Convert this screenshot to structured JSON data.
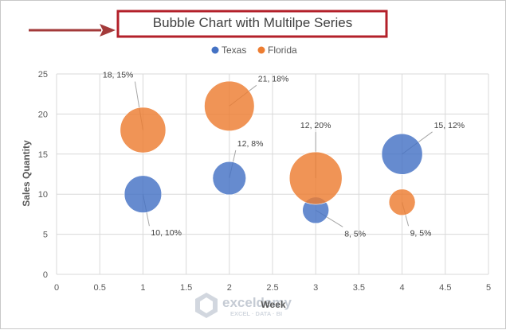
{
  "chart_data": {
    "type": "bubble",
    "title": "Bubble Chart with Multilpe Series",
    "xlabel": "Week",
    "ylabel": "Sales Quantity",
    "xlim": [
      0,
      5
    ],
    "ylim": [
      0,
      25
    ],
    "x_ticks": [
      "0",
      "0.5",
      "1",
      "1.5",
      "2",
      "2.5",
      "3",
      "3.5",
      "4",
      "4.5",
      "5"
    ],
    "y_ticks": [
      "0",
      "5",
      "10",
      "15",
      "20",
      "25"
    ],
    "grid": true,
    "legend_position": "top",
    "series": [
      {
        "name": "Texas",
        "color": "#4472c4",
        "points": [
          {
            "x": 1,
            "y": 10,
            "size": 10,
            "label": "10, 10%"
          },
          {
            "x": 2,
            "y": 12,
            "size": 8,
            "label": "12, 8%"
          },
          {
            "x": 3,
            "y": 8,
            "size": 5,
            "label": "8, 5%"
          },
          {
            "x": 4,
            "y": 15,
            "size": 12,
            "label": "15, 12%"
          }
        ]
      },
      {
        "name": "Florida",
        "color": "#ed7d31",
        "points": [
          {
            "x": 1,
            "y": 18,
            "size": 15,
            "label": "18, 15%"
          },
          {
            "x": 2,
            "y": 21,
            "size": 18,
            "label": "21, 18%"
          },
          {
            "x": 3,
            "y": 12,
            "size": 20,
            "label": "12, 20%"
          },
          {
            "x": 4,
            "y": 9,
            "size": 5,
            "label": "9, 5%"
          }
        ]
      }
    ]
  },
  "annotation": {
    "title_highlight_color": "#b3202a",
    "arrow_color": "#a33a3a"
  },
  "watermark": {
    "name": "exceldemy",
    "tagline": "EXCEL · DATA · BI"
  }
}
